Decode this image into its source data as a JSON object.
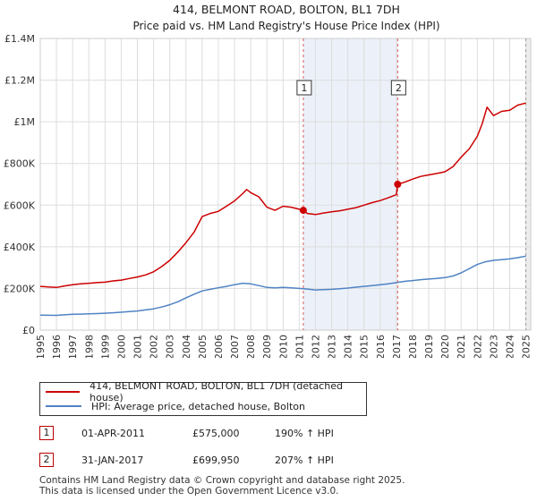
{
  "chart_data": {
    "type": "line",
    "title": "414, BELMONT ROAD, BOLTON, BL1 7DH",
    "subtitle": "Price paid vs. HM Land Registry's House Price Index (HPI)",
    "xlim": [
      1995,
      2025.3
    ],
    "ylim": [
      0,
      1400000
    ],
    "grid": true,
    "y_ticks": [
      {
        "value": 0,
        "label": "£0"
      },
      {
        "value": 200000,
        "label": "£200K"
      },
      {
        "value": 400000,
        "label": "£400K"
      },
      {
        "value": 600000,
        "label": "£600K"
      },
      {
        "value": 800000,
        "label": "£800K"
      },
      {
        "value": 1000000,
        "label": "£1M"
      },
      {
        "value": 1200000,
        "label": "£1.2M"
      },
      {
        "value": 1400000,
        "label": "£1.4M"
      }
    ],
    "x_ticks": [
      "1995",
      "1996",
      "1997",
      "1998",
      "1999",
      "2000",
      "2001",
      "2002",
      "2003",
      "2004",
      "2005",
      "2006",
      "2007",
      "2008",
      "2009",
      "2010",
      "2011",
      "2012",
      "2013",
      "2014",
      "2015",
      "2016",
      "2017",
      "2018",
      "2019",
      "2020",
      "2021",
      "2022",
      "2023",
      "2024",
      "2025"
    ],
    "series": [
      {
        "name": "414, BELMONT ROAD, BOLTON, BL1 7DH (detached house)",
        "color": "#cc0000",
        "x": [
          1995.0,
          1995.5,
          1996.0,
          1996.5,
          1997.0,
          1997.5,
          1998.0,
          1998.5,
          1999.0,
          1999.5,
          2000.0,
          2000.5,
          2001.0,
          2001.5,
          2002.0,
          2002.5,
          2003.0,
          2003.5,
          2004.0,
          2004.5,
          2005.0,
          2005.5,
          2006.0,
          2006.5,
          2007.0,
          2007.5,
          2007.75,
          2008.0,
          2008.5,
          2009.0,
          2009.5,
          2010.0,
          2010.5,
          2011.0,
          2011.25,
          2011.5,
          2012.0,
          2012.5,
          2013.0,
          2013.5,
          2014.0,
          2014.5,
          2015.0,
          2015.5,
          2016.0,
          2016.5,
          2017.0,
          2017.08,
          2017.5,
          2018.0,
          2018.5,
          2019.0,
          2019.5,
          2020.0,
          2020.5,
          2021.0,
          2021.5,
          2022.0,
          2022.3,
          2022.6,
          2023.0,
          2023.5,
          2024.0,
          2024.5,
          2025.0
        ],
        "values": [
          210000,
          207000,
          205000,
          212000,
          218000,
          222000,
          225000,
          228000,
          230000,
          236000,
          240000,
          248000,
          255000,
          265000,
          280000,
          305000,
          335000,
          375000,
          420000,
          470000,
          545000,
          560000,
          570000,
          595000,
          620000,
          655000,
          675000,
          660000,
          640000,
          590000,
          575000,
          595000,
          590000,
          580000,
          575000,
          560000,
          555000,
          562000,
          568000,
          573000,
          580000,
          588000,
          600000,
          612000,
          622000,
          635000,
          650000,
          699950,
          710000,
          725000,
          738000,
          745000,
          752000,
          760000,
          785000,
          830000,
          870000,
          930000,
          990000,
          1070000,
          1030000,
          1050000,
          1055000,
          1080000,
          1090000
        ]
      },
      {
        "name": "HPI: Average price, detached house, Bolton",
        "color": "#4f83c4",
        "x": [
          1995.0,
          1995.5,
          1996.0,
          1996.5,
          1997.0,
          1997.5,
          1998.0,
          1998.5,
          1999.0,
          1999.5,
          2000.0,
          2000.5,
          2001.0,
          2001.5,
          2002.0,
          2002.5,
          2003.0,
          2003.5,
          2004.0,
          2004.5,
          2005.0,
          2005.5,
          2006.0,
          2006.5,
          2007.0,
          2007.5,
          2008.0,
          2008.5,
          2009.0,
          2009.5,
          2010.0,
          2010.5,
          2011.0,
          2011.5,
          2012.0,
          2012.5,
          2013.0,
          2013.5,
          2014.0,
          2014.5,
          2015.0,
          2015.5,
          2016.0,
          2016.5,
          2017.0,
          2017.5,
          2018.0,
          2018.5,
          2019.0,
          2019.5,
          2020.0,
          2020.5,
          2021.0,
          2021.5,
          2022.0,
          2022.5,
          2023.0,
          2023.5,
          2024.0,
          2024.5,
          2025.0
        ],
        "values": [
          72000,
          71500,
          71000,
          73500,
          76000,
          77000,
          78000,
          79500,
          81000,
          83500,
          86000,
          89000,
          92000,
          97000,
          102000,
          111000,
          122000,
          136000,
          155000,
          172000,
          188000,
          196000,
          203000,
          210000,
          218000,
          225000,
          222000,
          214000,
          205000,
          203000,
          205000,
          203000,
          200000,
          197000,
          193000,
          194000,
          196000,
          199000,
          202000,
          206000,
          210000,
          214000,
          218000,
          222000,
          228000,
          234000,
          238000,
          242000,
          245000,
          248000,
          252000,
          260000,
          275000,
          295000,
          315000,
          328000,
          335000,
          338000,
          342000,
          348000,
          355000
        ]
      }
    ],
    "sales": [
      {
        "marker": "1",
        "x": 2011.25,
        "value": 575000
      },
      {
        "marker": "2",
        "x": 2017.08,
        "value": 699950
      }
    ]
  },
  "legend": {
    "series1_label": "414, BELMONT ROAD, BOLTON, BL1 7DH (detached house)",
    "series2_label": "HPI: Average price, detached house, Bolton"
  },
  "sales_table": [
    {
      "marker": "1",
      "date": "01-APR-2011",
      "price": "£575,000",
      "hpi": "190% ↑ HPI"
    },
    {
      "marker": "2",
      "date": "31-JAN-2017",
      "price": "£699,950",
      "hpi": "207% ↑ HPI"
    }
  ],
  "footer": {
    "line1": "Contains HM Land Registry data © Crown copyright and database right 2025.",
    "line2": "This data is licensed under the Open Government Licence v3.0."
  },
  "colors": {
    "property": "#cc0000",
    "hpi": "#4f83c4",
    "shade": "#dde6f4",
    "grid": "#dddddd"
  }
}
